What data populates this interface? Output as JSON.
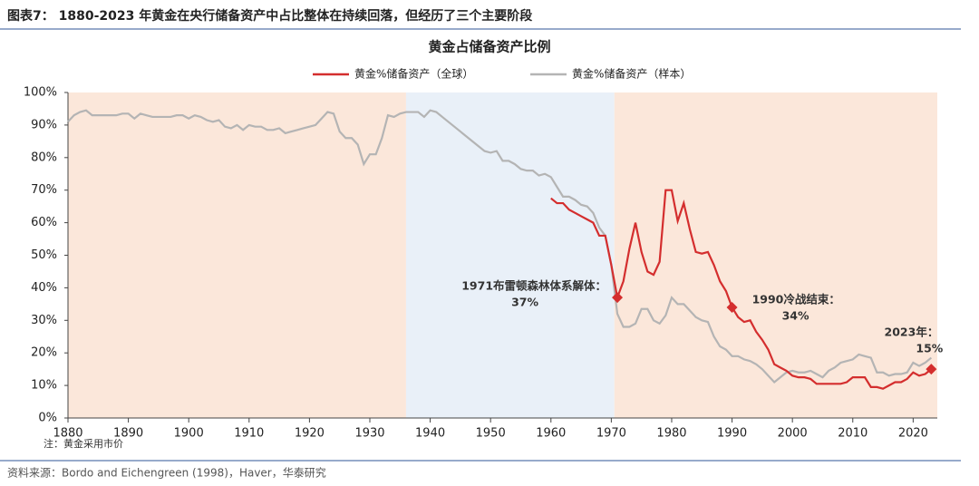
{
  "header": "图表7：  1880-2023 年黄金在央行储备资产中占比整体在持续回落，但经历了三个主要阶段",
  "note": "注：黄金采用市价",
  "source": "资料来源：Bordo and Eichengreen (1998)，Haver，华泰研究",
  "chart_data": {
    "type": "line",
    "title": "黄金占储备资产比例",
    "x": [
      1880,
      1881,
      1882,
      1883,
      1884,
      1885,
      1886,
      1887,
      1888,
      1889,
      1890,
      1891,
      1892,
      1893,
      1894,
      1895,
      1896,
      1897,
      1898,
      1899,
      1900,
      1901,
      1902,
      1903,
      1904,
      1905,
      1906,
      1907,
      1908,
      1909,
      1910,
      1911,
      1912,
      1913,
      1914,
      1915,
      1916,
      1917,
      1918,
      1919,
      1920,
      1921,
      1922,
      1923,
      1924,
      1925,
      1926,
      1927,
      1928,
      1929,
      1930,
      1931,
      1932,
      1933,
      1934,
      1935,
      1936,
      1937,
      1938,
      1939,
      1940,
      1941,
      1942,
      1943,
      1944,
      1945,
      1946,
      1947,
      1948,
      1949,
      1950,
      1951,
      1952,
      1953,
      1954,
      1955,
      1956,
      1957,
      1958,
      1959,
      1960,
      1961,
      1962,
      1963,
      1964,
      1965,
      1966,
      1967,
      1968,
      1969,
      1970,
      1971,
      1972,
      1973,
      1974,
      1975,
      1976,
      1977,
      1978,
      1979,
      1980,
      1981,
      1982,
      1983,
      1984,
      1985,
      1986,
      1987,
      1988,
      1989,
      1990,
      1991,
      1992,
      1993,
      1994,
      1995,
      1996,
      1997,
      1998,
      1999,
      2000,
      2001,
      2002,
      2003,
      2004,
      2005,
      2006,
      2007,
      2008,
      2009,
      2010,
      2011,
      2012,
      2013,
      2014,
      2015,
      2016,
      2017,
      2018,
      2019,
      2020,
      2021,
      2022,
      2023
    ],
    "series": [
      {
        "name": "黄金%储备资产（全球）",
        "color": "#d42e2e",
        "values": [
          null,
          null,
          null,
          null,
          null,
          null,
          null,
          null,
          null,
          null,
          null,
          null,
          null,
          null,
          null,
          null,
          null,
          null,
          null,
          null,
          null,
          null,
          null,
          null,
          null,
          null,
          null,
          null,
          null,
          null,
          null,
          null,
          null,
          null,
          null,
          null,
          null,
          null,
          null,
          null,
          null,
          null,
          null,
          null,
          null,
          null,
          null,
          null,
          null,
          null,
          null,
          null,
          null,
          null,
          null,
          null,
          null,
          null,
          null,
          null,
          null,
          null,
          null,
          null,
          null,
          null,
          null,
          null,
          null,
          null,
          null,
          null,
          null,
          null,
          null,
          null,
          null,
          null,
          null,
          null,
          67.5,
          66,
          66,
          64,
          63,
          62,
          61,
          60,
          56,
          56,
          47,
          37,
          42,
          52,
          60,
          51,
          45,
          44,
          48,
          70,
          70,
          60.5,
          66,
          58,
          51,
          50.5,
          51,
          47,
          42,
          39,
          34,
          31,
          29.5,
          30,
          26.5,
          24,
          21,
          16.5,
          15.5,
          14.5,
          13,
          12.5,
          12.5,
          12,
          10.5,
          10.5,
          10.5,
          10.5,
          10.5,
          11,
          12.5,
          12.5,
          12.5,
          9.5,
          9.5,
          9,
          10,
          11,
          11,
          12,
          14,
          13,
          13.5,
          15
        ]
      },
      {
        "name": "黄金%储备资产（样本）",
        "color": "#b4b4b4",
        "values": [
          91,
          93,
          94,
          94.5,
          93,
          93,
          93,
          93,
          93,
          93.5,
          93.5,
          92,
          93.5,
          93,
          92.5,
          92.5,
          92.5,
          92.5,
          93,
          93,
          92,
          93,
          92.5,
          91.5,
          91,
          91.5,
          89.5,
          89,
          90,
          88.5,
          90,
          89.5,
          89.5,
          88.5,
          88.5,
          89,
          87.5,
          88,
          88.5,
          89,
          89.5,
          90,
          92,
          94,
          93.5,
          88,
          86,
          86,
          84,
          78,
          81,
          81,
          86,
          93,
          92.5,
          93.5,
          94,
          94,
          94,
          92.5,
          94.5,
          94,
          92.5,
          91,
          89.5,
          88,
          86.5,
          85,
          83.5,
          82,
          81.5,
          82,
          79,
          79,
          78,
          76.5,
          76,
          76,
          74.5,
          75,
          74,
          71,
          68,
          68,
          67,
          65.5,
          65,
          63,
          58.5,
          56,
          47,
          32,
          28,
          28,
          29,
          33.5,
          33.5,
          30,
          29,
          31.5,
          37,
          35,
          35,
          33,
          31,
          30,
          29.5,
          25,
          22,
          21,
          19,
          19,
          18,
          17.5,
          16.5,
          15,
          13,
          11,
          12.5,
          14,
          14.5,
          14,
          14,
          14.5,
          13.5,
          12.5,
          14.5,
          15.5,
          17,
          17.5,
          18,
          19.5,
          19,
          18.5,
          14,
          14,
          13,
          13.5,
          13.5,
          14,
          17,
          16,
          17,
          18.5
        ]
      }
    ],
    "xlim": [
      1880,
      2024
    ],
    "ylim": [
      0,
      100
    ],
    "xticks": [
      1880,
      1890,
      1900,
      1910,
      1920,
      1930,
      1940,
      1950,
      1960,
      1970,
      1980,
      1990,
      2000,
      2010,
      2020
    ],
    "yticks": [
      {
        "value": 0,
        "label": "0%"
      },
      {
        "value": 10,
        "label": "10%"
      },
      {
        "value": 20,
        "label": "20%"
      },
      {
        "value": 30,
        "label": "30%"
      },
      {
        "value": 40,
        "label": "40%"
      },
      {
        "value": 50,
        "label": "50%"
      },
      {
        "value": 60,
        "label": "60%"
      },
      {
        "value": 70,
        "label": "70%"
      },
      {
        "value": 80,
        "label": "80%"
      },
      {
        "value": 90,
        "label": "90%"
      },
      {
        "value": 100,
        "label": "100%"
      }
    ],
    "shaded_regions": [
      {
        "from": 1880,
        "to": 1936,
        "color": "#fbe7da"
      },
      {
        "from": 1936,
        "to": 1970.5,
        "color": "#e9f0f8"
      },
      {
        "from": 1970.5,
        "to": 2024,
        "color": "#fbe7da"
      }
    ],
    "annotations": [
      {
        "text": "1971布雷顿森林体系解体：",
        "x": 1971,
        "y": {
          "value": 37,
          "label": "37%"
        },
        "position": "left"
      },
      {
        "text": "1990冷战结束：",
        "x": 1990,
        "y": {
          "value": 34,
          "label": "34%"
        },
        "position": "right"
      },
      {
        "text": "2023年：",
        "x": 2023,
        "y": {
          "value": 15,
          "label": "15%"
        },
        "position": "above"
      }
    ],
    "marker_color": "#d42e2e"
  }
}
